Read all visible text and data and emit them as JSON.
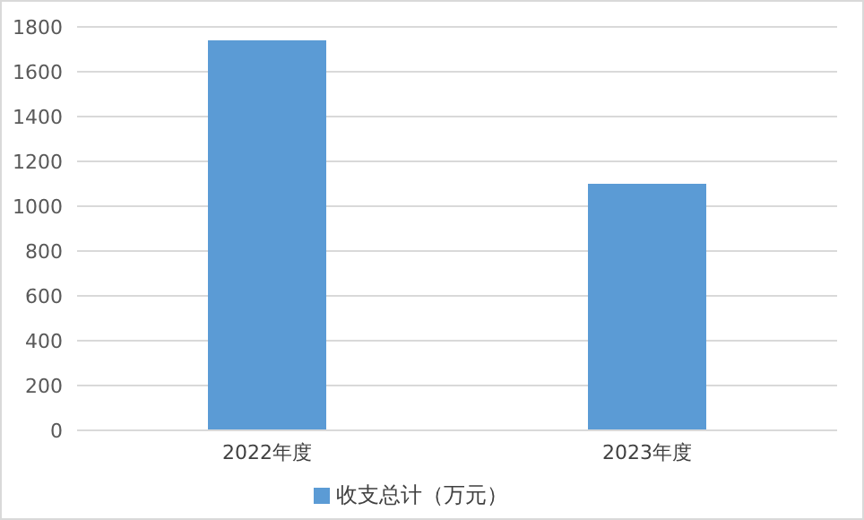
{
  "chart_data": {
    "type": "bar",
    "categories": [
      "2022年度",
      "2023年度"
    ],
    "series": [
      {
        "name": "收支总计（万元）",
        "color": "#5b9bd5",
        "values": [
          1740,
          1100
        ]
      }
    ],
    "ylim": [
      0,
      1800
    ],
    "yticks": [
      0,
      200,
      400,
      600,
      800,
      1000,
      1200,
      1400,
      1600,
      1800
    ],
    "grid": "y",
    "legend": "bottom"
  }
}
